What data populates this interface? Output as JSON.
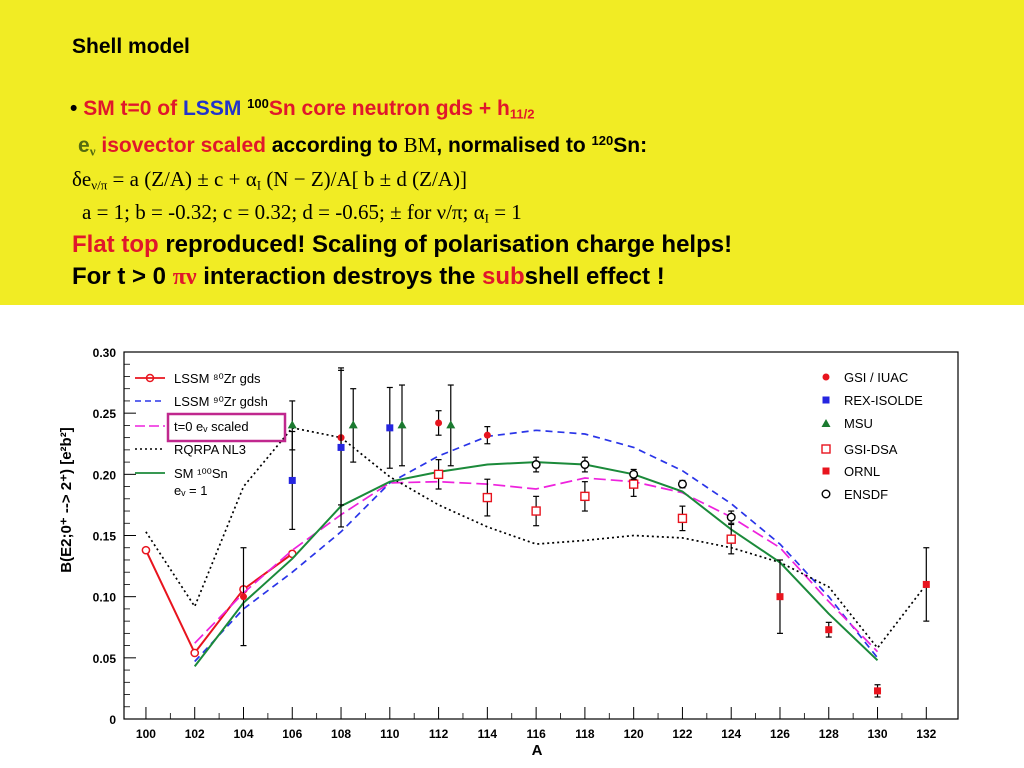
{
  "banner": {
    "title": "Shell model",
    "bullet": "•",
    "l2": {
      "sm": "SM t=0 of",
      "lssm": "LSSM",
      "mass": "100",
      "core": "Sn core neutron gds + h",
      "sub": "11/2"
    },
    "l3": {
      "e": "e",
      "nu": "ν",
      "iso": "isovector scaled",
      "acc": "according to",
      "bm": "BM",
      "norm": ", normalised to",
      "mass": "120",
      "sn": "Sn:"
    },
    "l4": {
      "de": "δe",
      "sub": "ν/π",
      "rest": " = a (Z/A) ± c + α",
      "sub2": "I",
      "rest2": " (N − Z)/A[ b ± d (Z/A)]"
    },
    "l5": {
      "text": "a = 1; b = -0.32; c = 0.32; d = -0.65; ± for ν/π; α",
      "sub": "I",
      "end": " = 1"
    },
    "l6": {
      "flat": "Flat top",
      "rest": " reproduced!   Scaling of polarisation charge helps!"
    },
    "l7": {
      "pre": "For t > 0 ",
      "pinu": "πν",
      "mid": " interaction destroys the ",
      "subw": "sub",
      "post": "shell effect !"
    }
  },
  "chart_data": {
    "type": "scatter",
    "ylabel": "B(E2;0⁺ --> 2⁺) [e²b²]",
    "xlabel": "A",
    "xlim": [
      99.1,
      133.3
    ],
    "ylim": [
      0,
      0.3
    ],
    "xticks": [
      100,
      102,
      104,
      106,
      108,
      110,
      112,
      114,
      116,
      118,
      120,
      122,
      124,
      126,
      128,
      130,
      132
    ],
    "yticks": [
      0,
      0.05,
      0.1,
      0.15,
      0.2,
      0.25,
      0.3
    ],
    "ytick_labels": [
      "0",
      "0.05",
      "0.10",
      "0.15",
      "0.20",
      "0.25",
      "0.30"
    ],
    "lines_legend": [
      "LSSM ⁸⁰Zr gds",
      "LSSM ⁹⁰Zr gdsh",
      "t=0 eᵥ scaled",
      "RQRPA NL3",
      "SM ¹⁰⁰Sn",
      "eᵥ = 1"
    ],
    "points_legend": [
      "GSI / IUAC",
      "REX-ISOLDE",
      "MSU",
      "GSI-DSA",
      "ORNL",
      "ENSDF"
    ],
    "lines": [
      {
        "name": "LSSM 80Zr gds",
        "color": "#e8141e",
        "style": "solid",
        "marker": "circle",
        "points": [
          [
            100,
            0.138
          ],
          [
            102,
            0.054
          ],
          [
            104,
            0.106
          ],
          [
            106,
            0.135
          ]
        ]
      },
      {
        "name": "LSSM 90Zr gdsh",
        "color": "#2a35e8",
        "style": "dash",
        "points": [
          [
            102,
            0.047
          ],
          [
            104,
            0.09
          ],
          [
            106,
            0.12
          ],
          [
            108,
            0.153
          ],
          [
            110,
            0.193
          ],
          [
            112,
            0.215
          ],
          [
            114,
            0.231
          ],
          [
            116,
            0.236
          ],
          [
            118,
            0.233
          ],
          [
            120,
            0.222
          ],
          [
            122,
            0.203
          ],
          [
            124,
            0.176
          ],
          [
            126,
            0.143
          ],
          [
            128,
            0.1
          ],
          [
            130,
            0.05
          ]
        ]
      },
      {
        "name": "t=0 ev scaled",
        "color": "#ee22dd",
        "style": "longdash",
        "points": [
          [
            102,
            0.062
          ],
          [
            104,
            0.103
          ],
          [
            106,
            0.138
          ],
          [
            108,
            0.167
          ],
          [
            110,
            0.193
          ],
          [
            112,
            0.194
          ],
          [
            114,
            0.192
          ],
          [
            116,
            0.188
          ],
          [
            118,
            0.197
          ],
          [
            120,
            0.194
          ],
          [
            122,
            0.185
          ],
          [
            124,
            0.165
          ],
          [
            126,
            0.14
          ],
          [
            128,
            0.096
          ],
          [
            130,
            0.055
          ]
        ]
      },
      {
        "name": "RQRPA NL3",
        "color": "#000000",
        "style": "dot",
        "points": [
          [
            100,
            0.153
          ],
          [
            102,
            0.092
          ],
          [
            104,
            0.19
          ],
          [
            106,
            0.238
          ],
          [
            108,
            0.23
          ],
          [
            110,
            0.198
          ],
          [
            112,
            0.175
          ],
          [
            114,
            0.157
          ],
          [
            116,
            0.143
          ],
          [
            118,
            0.146
          ],
          [
            120,
            0.15
          ],
          [
            122,
            0.148
          ],
          [
            124,
            0.14
          ],
          [
            126,
            0.128
          ],
          [
            128,
            0.108
          ],
          [
            130,
            0.058
          ],
          [
            132,
            0.11
          ]
        ]
      },
      {
        "name": "SM 100Sn",
        "color": "#1b8a3a",
        "style": "solid",
        "points": [
          [
            102,
            0.043
          ],
          [
            104,
            0.095
          ],
          [
            106,
            0.131
          ],
          [
            108,
            0.174
          ],
          [
            110,
            0.194
          ],
          [
            112,
            0.202
          ],
          [
            114,
            0.208
          ],
          [
            116,
            0.21
          ],
          [
            118,
            0.208
          ],
          [
            120,
            0.2
          ],
          [
            122,
            0.186
          ],
          [
            124,
            0.155
          ],
          [
            126,
            0.128
          ],
          [
            128,
            0.086
          ],
          [
            130,
            0.048
          ]
        ]
      }
    ],
    "points": [
      {
        "name": "GSI / IUAC",
        "marker": "circle-filled",
        "color": "#e8141e",
        "data": [
          [
            104,
            0.1,
            0.04
          ],
          [
            108,
            0.23,
            0.055
          ],
          [
            112,
            0.242,
            0.01
          ],
          [
            114,
            0.232,
            0.007
          ]
        ]
      },
      {
        "name": "REX-ISOLDE",
        "marker": "square-filled",
        "color": "#2525e0",
        "data": [
          [
            106,
            0.195,
            0.04
          ],
          [
            108,
            0.222,
            0.065
          ],
          [
            110,
            0.238,
            0.033
          ]
        ]
      },
      {
        "name": "MSU",
        "marker": "triangle-filled",
        "color": "#1b7a30",
        "data": [
          [
            106,
            0.24,
            0.02
          ],
          [
            108.5,
            0.24,
            0.03
          ],
          [
            110.5,
            0.24,
            0.033
          ],
          [
            112.5,
            0.24,
            0.033
          ]
        ]
      },
      {
        "name": "GSI-DSA",
        "marker": "square-open",
        "color": "#e8141e",
        "data": [
          [
            112,
            0.2,
            0.012
          ],
          [
            114,
            0.181,
            0.015
          ],
          [
            116,
            0.17,
            0.012
          ],
          [
            118,
            0.182,
            0.012
          ],
          [
            120,
            0.192,
            0.01
          ],
          [
            122,
            0.164,
            0.01
          ],
          [
            124,
            0.147,
            0.012
          ]
        ]
      },
      {
        "name": "ORNL",
        "marker": "square-filled",
        "color": "#e8141e",
        "data": [
          [
            126,
            0.1,
            0.03
          ],
          [
            128,
            0.073,
            0.006
          ],
          [
            130,
            0.023,
            0.005
          ],
          [
            132,
            0.11,
            0.03
          ]
        ]
      },
      {
        "name": "ENSDF",
        "marker": "circle-open",
        "color": "#000000",
        "data": [
          [
            116,
            0.208,
            0.006
          ],
          [
            118,
            0.208,
            0.006
          ],
          [
            120,
            0.2,
            0.004
          ],
          [
            122,
            0.192,
            0.003
          ],
          [
            124,
            0.165,
            0.005
          ]
        ]
      }
    ],
    "highlight": "t=0 ev scaled"
  }
}
